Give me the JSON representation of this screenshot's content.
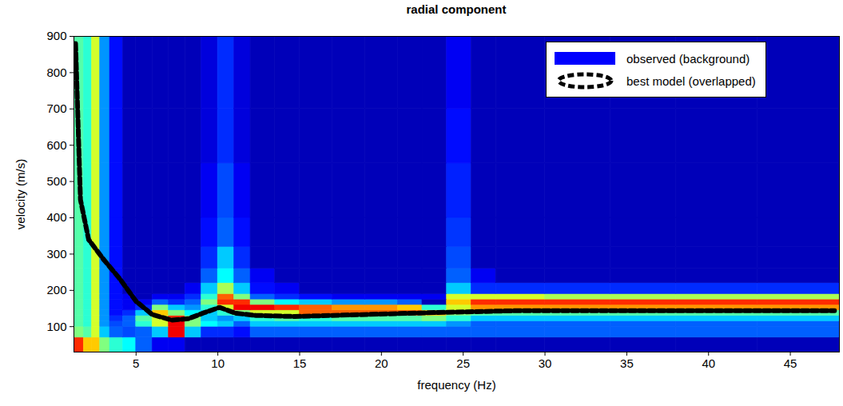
{
  "chart_data": {
    "type": "heatmap",
    "title": "radial component",
    "x_label": "frequency (Hz)",
    "y_label": "velocity (m/s)",
    "xlim": [
      1.2,
      48
    ],
    "xticks": [
      5,
      10,
      15,
      20,
      25,
      30,
      35,
      40,
      45
    ],
    "ylim": [
      30,
      900
    ],
    "yticks": [
      100,
      200,
      300,
      400,
      500,
      600,
      700,
      800,
      900
    ],
    "legend": "top-right",
    "observed": {
      "name": "observed (background)",
      "color": "#0000ff",
      "x_edges": [
        1.2,
        1.8,
        2.3,
        2.8,
        3.4,
        4.2,
        5,
        6,
        7,
        8,
        9,
        10,
        11,
        12,
        13.5,
        15,
        17,
        19,
        21,
        22.5,
        24,
        25.5,
        27,
        30,
        34,
        38,
        43,
        48
      ],
      "y_edges": [
        30,
        70,
        100,
        115,
        130,
        145,
        160,
        175,
        190,
        220,
        260,
        320,
        400,
        550,
        700,
        900
      ],
      "zlim": [
        0,
        1
      ],
      "z": [
        [
          0.85,
          0.7,
          0.7,
          0.5,
          0.4,
          0.35,
          0.2,
          0.1,
          0.1,
          0.05,
          0.05,
          0.05,
          0.05,
          0.05,
          0.05,
          0.05,
          0.05,
          0.05,
          0.05,
          0.05,
          0.05,
          0.05,
          0.05,
          0.05,
          0.05,
          0.05,
          0.05
        ],
        [
          0.5,
          0.45,
          0.6,
          0.3,
          0.2,
          0.18,
          0.2,
          0.3,
          0.9,
          0.3,
          0.15,
          0.15,
          0.12,
          0.2,
          0.2,
          0.2,
          0.2,
          0.2,
          0.2,
          0.2,
          0.2,
          0.2,
          0.2,
          0.2,
          0.2,
          0.2,
          0.2
        ],
        [
          0.45,
          0.4,
          0.6,
          0.25,
          0.18,
          0.2,
          0.4,
          0.6,
          0.9,
          0.5,
          0.35,
          0.3,
          0.2,
          0.3,
          0.3,
          0.3,
          0.3,
          0.3,
          0.3,
          0.3,
          0.25,
          0.2,
          0.2,
          0.2,
          0.2,
          0.2,
          0.2
        ],
        [
          0.45,
          0.4,
          0.6,
          0.25,
          0.15,
          0.2,
          0.45,
          0.6,
          0.85,
          0.5,
          0.3,
          0.25,
          0.3,
          0.4,
          0.45,
          0.4,
          0.45,
          0.45,
          0.45,
          0.5,
          0.4,
          0.3,
          0.3,
          0.3,
          0.3,
          0.3,
          0.3
        ],
        [
          0.45,
          0.4,
          0.6,
          0.25,
          0.12,
          0.15,
          0.3,
          0.7,
          0.5,
          0.35,
          0.3,
          0.4,
          0.5,
          0.6,
          0.6,
          0.8,
          0.8,
          0.8,
          0.8,
          0.7,
          0.5,
          0.45,
          0.45,
          0.45,
          0.45,
          0.45,
          0.45
        ],
        [
          0.45,
          0.4,
          0.6,
          0.25,
          0.12,
          0.1,
          0.15,
          0.5,
          0.3,
          0.25,
          0.4,
          0.6,
          0.9,
          0.9,
          0.85,
          0.8,
          0.75,
          0.75,
          0.7,
          0.4,
          0.6,
          0.75,
          0.75,
          0.75,
          0.75,
          0.75,
          0.75
        ],
        [
          0.45,
          0.4,
          0.6,
          0.25,
          0.12,
          0.1,
          0.1,
          0.2,
          0.15,
          0.2,
          0.5,
          0.85,
          0.85,
          0.5,
          0.35,
          0.3,
          0.25,
          0.25,
          0.2,
          0.05,
          0.7,
          0.85,
          0.85,
          0.85,
          0.85,
          0.85,
          0.85
        ],
        [
          0.45,
          0.4,
          0.6,
          0.25,
          0.12,
          0.1,
          0.05,
          0.1,
          0.1,
          0.15,
          0.4,
          0.8,
          0.5,
          0.2,
          0.15,
          0.12,
          0.1,
          0.1,
          0.1,
          0.1,
          0.6,
          0.6,
          0.6,
          0.55,
          0.55,
          0.55,
          0.55
        ],
        [
          0.45,
          0.4,
          0.6,
          0.25,
          0.12,
          0.05,
          0.05,
          0.05,
          0.05,
          0.1,
          0.3,
          0.55,
          0.3,
          0.12,
          0.1,
          0.05,
          0.05,
          0.05,
          0.05,
          0.05,
          0.3,
          0.15,
          0.15,
          0.15,
          0.15,
          0.15,
          0.15
        ],
        [
          0.45,
          0.4,
          0.6,
          0.25,
          0.12,
          0.05,
          0.05,
          0.05,
          0.05,
          0.05,
          0.2,
          0.35,
          0.2,
          0.1,
          0.05,
          0.05,
          0.05,
          0.05,
          0.05,
          0.05,
          0.2,
          0.1,
          0.05,
          0.05,
          0.05,
          0.05,
          0.05
        ],
        [
          0.45,
          0.4,
          0.6,
          0.25,
          0.12,
          0.05,
          0.05,
          0.05,
          0.05,
          0.05,
          0.15,
          0.3,
          0.15,
          0.05,
          0.05,
          0.05,
          0.05,
          0.05,
          0.05,
          0.05,
          0.18,
          0.05,
          0.05,
          0.05,
          0.05,
          0.05,
          0.05
        ],
        [
          0.45,
          0.4,
          0.6,
          0.25,
          0.12,
          0.05,
          0.05,
          0.05,
          0.05,
          0.05,
          0.12,
          0.2,
          0.12,
          0.05,
          0.05,
          0.05,
          0.05,
          0.05,
          0.05,
          0.05,
          0.16,
          0.05,
          0.05,
          0.05,
          0.05,
          0.05,
          0.05
        ],
        [
          0.45,
          0.4,
          0.6,
          0.25,
          0.12,
          0.05,
          0.05,
          0.05,
          0.05,
          0.05,
          0.1,
          0.18,
          0.1,
          0.05,
          0.05,
          0.05,
          0.05,
          0.05,
          0.05,
          0.05,
          0.14,
          0.05,
          0.05,
          0.05,
          0.05,
          0.05,
          0.05
        ],
        [
          0.45,
          0.4,
          0.6,
          0.25,
          0.12,
          0.05,
          0.05,
          0.05,
          0.05,
          0.05,
          0.08,
          0.15,
          0.08,
          0.05,
          0.05,
          0.05,
          0.05,
          0.05,
          0.05,
          0.05,
          0.12,
          0.05,
          0.05,
          0.05,
          0.05,
          0.05,
          0.05
        ],
        [
          0.45,
          0.4,
          0.6,
          0.25,
          0.12,
          0.05,
          0.05,
          0.05,
          0.05,
          0.05,
          0.08,
          0.15,
          0.08,
          0.05,
          0.05,
          0.05,
          0.05,
          0.05,
          0.05,
          0.05,
          0.1,
          0.05,
          0.05,
          0.05,
          0.05,
          0.05,
          0.05
        ]
      ]
    },
    "series": [
      {
        "name": "best model (overlapped)",
        "type": "line",
        "color": "#000000",
        "line_style": "dashed",
        "marker": "square",
        "x": [
          1.3,
          1.6,
          2.1,
          3.0,
          4.0,
          5.0,
          6.0,
          7.2,
          8.2,
          9.2,
          10.1,
          11.1,
          12.3,
          14.7,
          18.6,
          23.4,
          28.3,
          35.6,
          47.7
        ],
        "values": [
          880,
          450,
          340,
          286,
          232,
          170,
          133,
          118,
          122,
          139,
          153,
          137,
          131,
          128,
          133,
          139,
          144,
          144,
          144
        ]
      }
    ]
  }
}
